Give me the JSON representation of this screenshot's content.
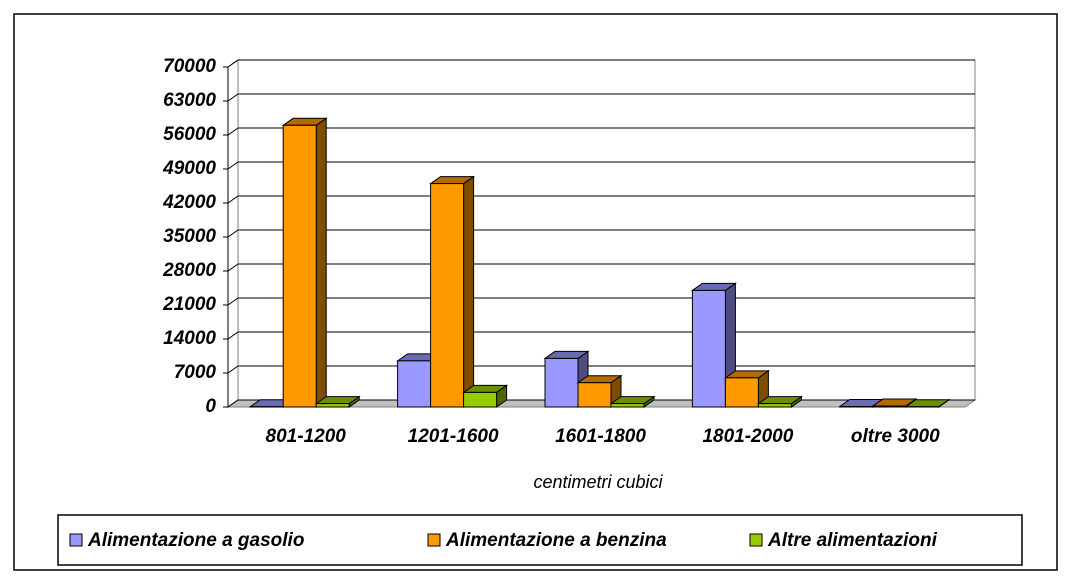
{
  "chart_data": {
    "type": "bar3d",
    "categories": [
      "801-1200",
      "1201-1600",
      "1601-1800",
      "1801-2000",
      "oltre 3000"
    ],
    "x_label": "centimetri cubici",
    "series": [
      {
        "name": "Alimentazione a gasolio",
        "color": "#9999ff",
        "values": [
          50,
          9500,
          10000,
          24000,
          100
        ]
      },
      {
        "name": "Alimentazione a benzina",
        "color": "#ff9900",
        "values": [
          58000,
          46000,
          5000,
          6000,
          200
        ]
      },
      {
        "name": "Altre alimentazioni",
        "color": "#99cc00",
        "values": [
          700,
          3000,
          700,
          700,
          50
        ]
      }
    ],
    "ylim": [
      0,
      70000
    ],
    "yticks": [
      0,
      7000,
      14000,
      21000,
      28000,
      35000,
      42000,
      49000,
      56000,
      63000,
      70000
    ],
    "grid": true,
    "legend": "bottom"
  }
}
